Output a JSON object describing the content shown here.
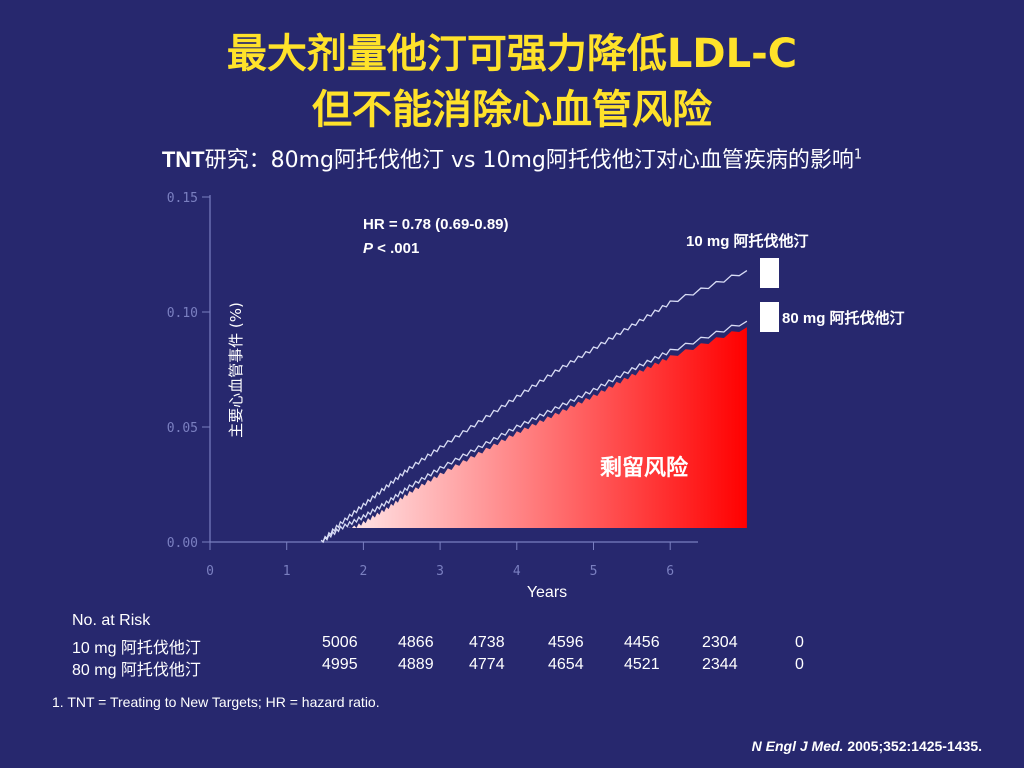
{
  "title_line1": "最大剂量他汀可强力降低LDL-C",
  "title_line2": "但不能消除心血管风险",
  "subtitle": {
    "prefix": "TNT",
    "text": "研究：80mg阿托伐他汀 vs 10mg阿托伐他汀对心血管疾病的影响",
    "superscript": "1"
  },
  "colors": {
    "background": "#27286e",
    "title": "#ffe22a",
    "axis": "#7a7fc0",
    "curve": "#d8dcf5",
    "fill_start": "#ffe8ea",
    "fill_end": "#ff0000"
  },
  "chart_data": {
    "type": "line",
    "xlabel": "Years",
    "ylabel": "主要心血管事件 (%)",
    "xlim": [
      0,
      6
    ],
    "ylim": [
      0,
      0.15
    ],
    "x_ticks": [
      "0",
      "1",
      "2",
      "3",
      "4",
      "5",
      "6"
    ],
    "y_ticks": [
      "0.00",
      "0.05",
      "0.10",
      "0.15"
    ],
    "annotation_hr": "HR = 0.78 (0.69-0.89)",
    "annotation_p_italic": "P",
    "annotation_p_rest": " < .001",
    "shaded_label": "剩留风险",
    "series": [
      {
        "name": "10 mg  阿托伐他汀",
        "x": [
          1.45,
          1.7,
          2.0,
          2.3,
          2.6,
          3.0,
          3.5,
          4.0,
          4.5,
          5.0,
          5.5,
          6.0,
          7.0
        ],
        "y": [
          0.0,
          0.008,
          0.016,
          0.024,
          0.032,
          0.041,
          0.052,
          0.063,
          0.074,
          0.084,
          0.094,
          0.104,
          0.118
        ]
      },
      {
        "name": "80 mg 阿托伐他汀",
        "x": [
          1.45,
          1.7,
          2.0,
          2.3,
          2.6,
          3.0,
          3.5,
          4.0,
          4.5,
          5.0,
          5.5,
          6.0,
          7.0
        ],
        "y": [
          0.0,
          0.006,
          0.011,
          0.017,
          0.024,
          0.032,
          0.041,
          0.05,
          0.058,
          0.066,
          0.075,
          0.083,
          0.096
        ]
      }
    ]
  },
  "risk_table": {
    "header": "No. at Risk",
    "rows": [
      {
        "label": "10 mg 阿托伐他汀",
        "values": [
          "5006",
          "4866",
          "4738",
          "4596",
          "4456",
          "2304",
          "0"
        ]
      },
      {
        "label": "80 mg 阿托伐他汀",
        "values": [
          "4995",
          "4889",
          "4774",
          "4654",
          "4521",
          "2344",
          "0"
        ]
      }
    ]
  },
  "footnote": "1. TNT = Treating to New Targets; HR = hazard ratio.",
  "citation": {
    "journal": "N Engl J Med.",
    "ref": " 2005;352:1425-1435",
    "end": "."
  }
}
